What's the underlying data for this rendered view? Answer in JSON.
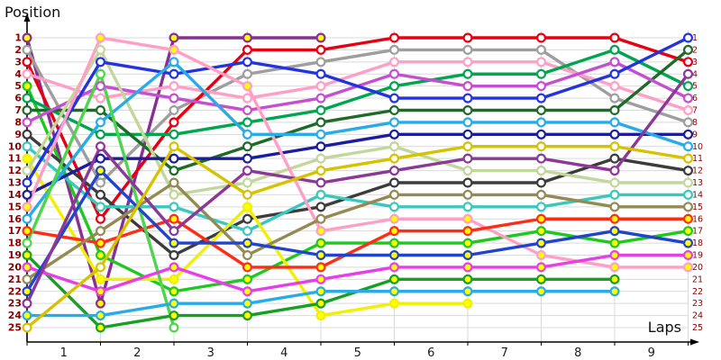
{
  "title": "Position",
  "x_axis_label": "Laps",
  "colors": {
    "background": "#FFFFFF",
    "grid": "#D9D9D9",
    "axis": "#000000",
    "tick_label_y": "#8B0000",
    "tick_label_x": "#1A1A1A",
    "marker_white": "#FFFFFF",
    "marker_yellow": "#FFFF00"
  },
  "chart_data": {
    "type": "line",
    "title": "Position",
    "xlabel": "Laps",
    "ylabel": "Position",
    "grid": true,
    "legend": "none",
    "laps": [
      0,
      1,
      2,
      3,
      4,
      5,
      6,
      7,
      8,
      9
    ],
    "x_tick_labels": [
      "1",
      "2",
      "3",
      "4",
      "5",
      "6",
      "7",
      "8",
      "9"
    ],
    "y_tick_labels": [
      "1",
      "2",
      "3",
      "4",
      "5",
      "6",
      "7",
      "8",
      "9",
      "10",
      "11",
      "12",
      "13",
      "14",
      "15",
      "16",
      "17",
      "18",
      "19",
      "20",
      "21",
      "22",
      "23",
      "24",
      "25"
    ],
    "ylim": [
      1,
      25
    ],
    "y_axis_sides": [
      "left",
      "right"
    ],
    "series": [
      {
        "name": "car-purple-yellow",
        "color": "#8A2E94",
        "marker": "yellow",
        "positions": [
          1,
          23,
          1,
          1,
          1,
          null,
          null,
          null,
          null,
          null
        ]
      },
      {
        "name": "car-gray",
        "color": "#9E9E9E",
        "marker": "white",
        "positions": [
          2,
          13,
          7,
          4,
          3,
          2,
          2,
          2,
          6,
          8
        ]
      },
      {
        "name": "car-red",
        "color": "#E60012",
        "marker": "white",
        "positions": [
          3,
          16,
          8,
          2,
          2,
          1,
          1,
          1,
          1,
          3
        ]
      },
      {
        "name": "car-pink",
        "color": "#FF9FC6",
        "marker": "white",
        "positions": [
          4,
          6,
          5,
          6,
          5,
          3,
          3,
          3,
          5,
          7
        ]
      },
      {
        "name": "car-green-yellow",
        "color": "#1EC81E",
        "marker": "yellow",
        "positions": [
          5,
          19,
          22,
          21,
          18,
          18,
          18,
          17,
          18,
          17
        ]
      },
      {
        "name": "car-green",
        "color": "#00A550",
        "marker": "white",
        "positions": [
          6,
          9,
          9,
          8,
          7,
          5,
          4,
          4,
          2,
          5
        ]
      },
      {
        "name": "car-darkgreen",
        "color": "#1E6B28",
        "marker": "white",
        "positions": [
          7,
          7,
          12,
          10,
          8,
          7,
          7,
          7,
          7,
          2
        ]
      },
      {
        "name": "car-violet",
        "color": "#C44FD0",
        "marker": "white",
        "positions": [
          8,
          5,
          6,
          7,
          6,
          4,
          5,
          5,
          3,
          6
        ]
      },
      {
        "name": "car-black",
        "color": "#3C3C3C",
        "marker": "white",
        "positions": [
          9,
          14,
          19,
          16,
          15,
          13,
          13,
          13,
          11,
          12
        ]
      },
      {
        "name": "car-turquoise",
        "color": "#38C8BE",
        "marker": "white",
        "positions": [
          10,
          15,
          15,
          17,
          14,
          15,
          15,
          15,
          14,
          14
        ]
      },
      {
        "name": "car-brightyellow",
        "color": "#F0F000",
        "marker": "yellow",
        "positions": [
          11,
          21,
          21,
          15,
          24,
          23,
          23,
          null,
          null,
          null
        ]
      },
      {
        "name": "car-palegreen",
        "color": "#C3D69B",
        "marker": "white",
        "positions": [
          12,
          2,
          14,
          13,
          11,
          10,
          12,
          12,
          13,
          13
        ]
      },
      {
        "name": "car-blue",
        "color": "#2333E0",
        "marker": "white",
        "positions": [
          13,
          3,
          4,
          3,
          4,
          6,
          6,
          6,
          4,
          1
        ]
      },
      {
        "name": "car-navy",
        "color": "#1C1C9E",
        "marker": "white",
        "positions": [
          14,
          11,
          11,
          11,
          10,
          9,
          9,
          9,
          9,
          9
        ]
      },
      {
        "name": "car-pink-yellow",
        "color": "#FF9FC6",
        "marker": "yellow",
        "positions": [
          15,
          1,
          2,
          5,
          17,
          16,
          16,
          19,
          20,
          20
        ]
      },
      {
        "name": "car-skyblue",
        "color": "#29ABE8",
        "marker": "white",
        "positions": [
          16,
          8,
          3,
          9,
          9,
          8,
          8,
          8,
          8,
          10
        ]
      },
      {
        "name": "car-red-yellow",
        "color": "#FF2D16",
        "marker": "yellow",
        "positions": [
          17,
          18,
          16,
          20,
          20,
          17,
          17,
          16,
          16,
          16
        ]
      },
      {
        "name": "car-lightgreen",
        "color": "#4FD44F",
        "marker": "white",
        "positions": [
          18,
          4,
          25,
          null,
          null,
          null,
          null,
          null,
          null,
          null
        ]
      },
      {
        "name": "car-green2-yellow",
        "color": "#17A022",
        "marker": "yellow",
        "positions": [
          19,
          25,
          24,
          24,
          23,
          21,
          21,
          21,
          21,
          null
        ]
      },
      {
        "name": "car-magenta-yellow",
        "color": "#E83EE8",
        "marker": "yellow",
        "positions": [
          20,
          22,
          20,
          22,
          21,
          20,
          20,
          20,
          19,
          19
        ]
      },
      {
        "name": "car-olive",
        "color": "#948A54",
        "marker": "white",
        "positions": [
          21,
          17,
          13,
          19,
          16,
          14,
          14,
          14,
          15,
          15
        ]
      },
      {
        "name": "car-blue-yellow",
        "color": "#2244CC",
        "marker": "yellow",
        "positions": [
          22,
          12,
          18,
          18,
          19,
          19,
          19,
          18,
          17,
          18
        ]
      },
      {
        "name": "car-purple",
        "color": "#8C3896",
        "marker": "white",
        "positions": [
          23,
          10,
          17,
          12,
          13,
          12,
          11,
          11,
          12,
          4
        ]
      },
      {
        "name": "car-skyblue-yellow",
        "color": "#29ABE8",
        "marker": "yellow",
        "positions": [
          24,
          24,
          23,
          23,
          22,
          22,
          22,
          22,
          22,
          null
        ]
      },
      {
        "name": "car-gold",
        "color": "#D6C300",
        "marker": "white",
        "positions": [
          25,
          20,
          10,
          14,
          12,
          11,
          10,
          10,
          10,
          11
        ]
      }
    ]
  }
}
